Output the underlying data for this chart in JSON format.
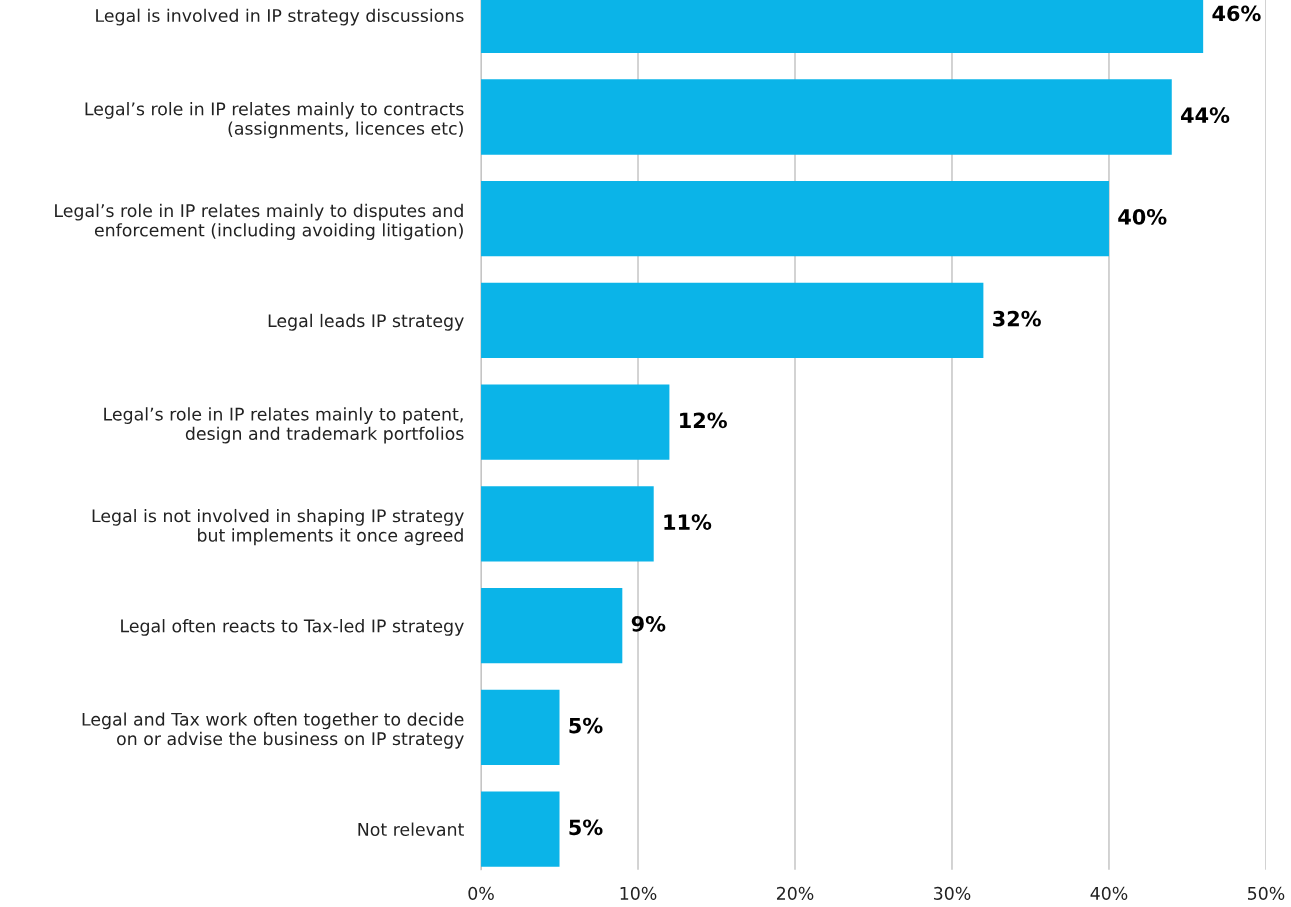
{
  "chart_data": {
    "type": "bar",
    "orientation": "horizontal",
    "categories": [
      "Legal is involved in IP strategy discussions",
      "Legal’s role in IP relates mainly to contracts\n(assignments, licences etc)",
      "Legal’s role in IP relates mainly to disputes and\nenforcement (including avoiding litigation)",
      "Legal leads IP strategy",
      "Legal’s role in IP relates mainly to patent,\ndesign and trademark portfolios",
      "Legal is not involved in shaping IP strategy\nbut implements it once agreed",
      "Legal often reacts to Tax-led IP strategy",
      "Legal and Tax work often together to decide\non or advise the business on IP strategy",
      "Not relevant"
    ],
    "values": [
      46,
      44,
      40,
      32,
      12,
      11,
      9,
      5,
      5
    ],
    "value_labels": [
      "46%",
      "44%",
      "40%",
      "32%",
      "12%",
      "11%",
      "9%",
      "5%",
      "5%"
    ],
    "color": "#0bb4e8",
    "xlim": [
      0,
      50
    ],
    "xticks": [
      {
        "value": 0,
        "label": "0%"
      },
      {
        "value": 10,
        "label": "10%"
      },
      {
        "value": 20,
        "label": "20%"
      },
      {
        "value": 30,
        "label": "30%"
      },
      {
        "value": 40,
        "label": "40%"
      },
      {
        "value": 50,
        "label": "50%"
      }
    ],
    "grid": "x"
  }
}
